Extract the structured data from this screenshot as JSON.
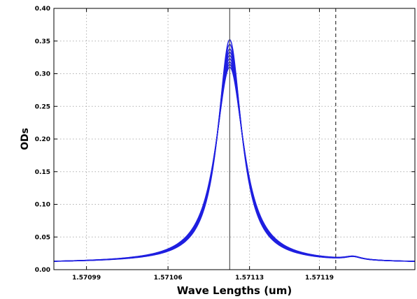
{
  "chart_data": {
    "type": "line",
    "title": "",
    "xlabel": "Wave Lengths (um)",
    "ylabel": "ODs",
    "xlim": [
      1.570962,
      1.571272
    ],
    "ylim": [
      0.0,
      0.4
    ],
    "grid": true,
    "legend": "none",
    "line_color": "#1f1fe0",
    "x_ticks": [
      {
        "value": 1.57099,
        "label": "1.57099"
      },
      {
        "value": 1.57106,
        "label": "1.57106"
      },
      {
        "value": 1.57113,
        "label": "1.57113"
      },
      {
        "value": 1.57119,
        "label": "1.57119"
      }
    ],
    "y_ticks": [
      {
        "value": 0.0,
        "label": "0.00"
      },
      {
        "value": 0.05,
        "label": "0.05"
      },
      {
        "value": 0.1,
        "label": "0.10"
      },
      {
        "value": 0.15,
        "label": "0.15"
      },
      {
        "value": 0.2,
        "label": "0.20"
      },
      {
        "value": 0.25,
        "label": "0.25"
      },
      {
        "value": 0.3,
        "label": "0.30"
      },
      {
        "value": 0.35,
        "label": "0.35"
      },
      {
        "value": 0.4,
        "label": "0.40"
      }
    ],
    "vlines": [
      {
        "x": 1.571113,
        "style": "solid",
        "color": "#555555"
      },
      {
        "x": 1.571204,
        "style": "dashed",
        "color": "#333333"
      }
    ],
    "peak_center": 1.571113,
    "series": [
      {
        "peak": 0.352,
        "width": 1.24e-05,
        "baseline": 0.0105,
        "bump_x": 1.571219,
        "bump": 0.005
      },
      {
        "peak": 0.345,
        "width": 1.28e-05,
        "baseline": 0.0105,
        "bump_x": 1.571219,
        "bump": 0.005
      },
      {
        "peak": 0.338,
        "width": 1.31e-05,
        "baseline": 0.0104,
        "bump_x": 1.571219,
        "bump": 0.005
      },
      {
        "peak": 0.333,
        "width": 1.33e-05,
        "baseline": 0.0104,
        "bump_x": 1.571219,
        "bump": 0.005
      },
      {
        "peak": 0.328,
        "width": 1.36e-05,
        "baseline": 0.0103,
        "bump_x": 1.571219,
        "bump": 0.005
      },
      {
        "peak": 0.323,
        "width": 1.39e-05,
        "baseline": 0.0103,
        "bump_x": 1.571219,
        "bump": 0.005
      },
      {
        "peak": 0.318,
        "width": 1.42e-05,
        "baseline": 0.0102,
        "bump_x": 1.571219,
        "bump": 0.005
      },
      {
        "peak": 0.314,
        "width": 1.45e-05,
        "baseline": 0.0102,
        "bump_x": 1.571219,
        "bump": 0.005
      },
      {
        "peak": 0.31,
        "width": 1.48e-05,
        "baseline": 0.0101,
        "bump_x": 1.571219,
        "bump": 0.005
      }
    ]
  }
}
